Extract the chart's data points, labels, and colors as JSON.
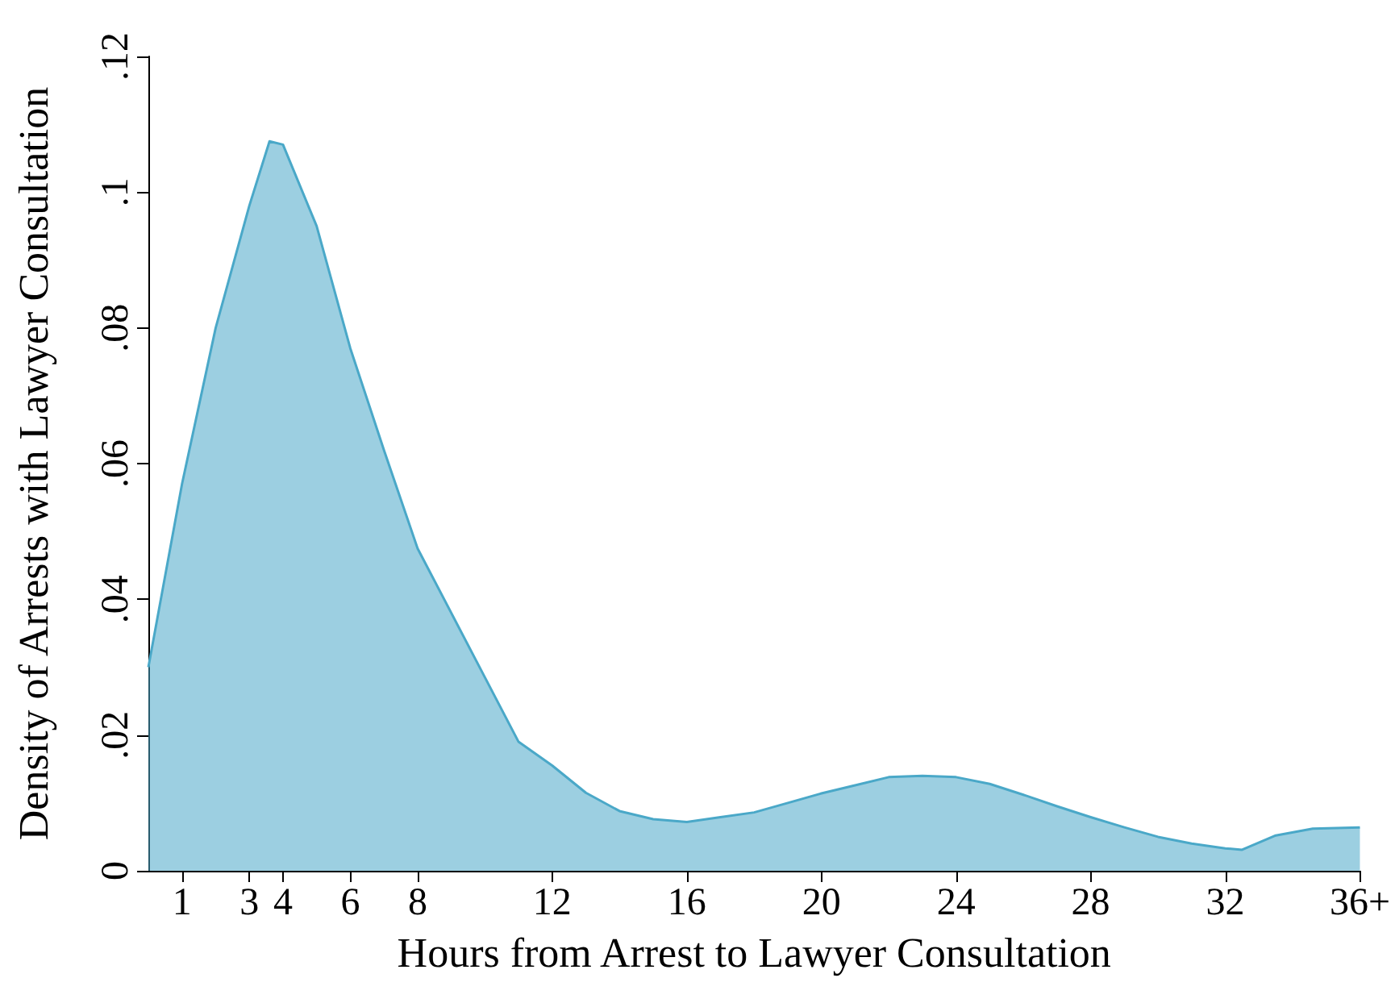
{
  "chart_data": {
    "type": "area",
    "xlabel": "Hours from Arrest to Lawyer Consultation",
    "ylabel": "Density of Arrests with Lawyer Consultation",
    "x": [
      0,
      1,
      2,
      3,
      3.6,
      4,
      5,
      6,
      7,
      8,
      9,
      10,
      11,
      12,
      13,
      14,
      15,
      16,
      17,
      18,
      19,
      20,
      21,
      22,
      23,
      24,
      25,
      26,
      27,
      28,
      29,
      30,
      31,
      32,
      32.5,
      33.5,
      34.6,
      36
    ],
    "series": [
      {
        "color": "#4aa8c8",
        "values": [
          0.03,
          0.057,
          0.08,
          0.098,
          0.1075,
          0.107,
          0.095,
          0.077,
          0.062,
          0.0475,
          0.038,
          0.0285,
          0.019,
          0.0155,
          0.0115,
          0.0088,
          0.0076,
          0.0072,
          0.0079,
          0.0086,
          0.01,
          0.0114,
          0.0126,
          0.0138,
          0.014,
          0.0138,
          0.0128,
          0.0112,
          0.0095,
          0.0079,
          0.0064,
          0.005,
          0.004,
          0.0033,
          0.0031,
          0.0052,
          0.0062,
          0.0064
        ]
      }
    ],
    "xlim": [
      0,
      36
    ],
    "xticks": [
      1,
      3,
      4,
      6,
      8,
      12,
      16,
      20,
      24,
      28,
      32,
      {
        "value": 36,
        "label": "36+"
      }
    ],
    "ylim": [
      0,
      0.12
    ],
    "yticks": [
      0,
      {
        "value": 0.02,
        "label": ".02"
      },
      {
        "value": 0.04,
        "label": ".04"
      },
      {
        "value": 0.06,
        "label": ".06"
      },
      {
        "value": 0.08,
        "label": ".08"
      },
      {
        "value": 0.1,
        "label": ".1"
      },
      {
        "value": 0.12,
        "label": ".12"
      }
    ],
    "grid": false,
    "marker": "none"
  }
}
